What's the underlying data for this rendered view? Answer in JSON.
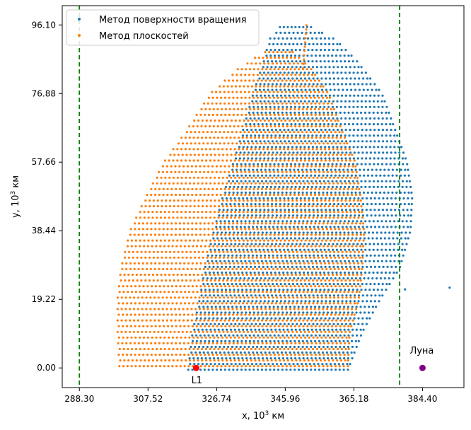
{
  "chart_data": {
    "type": "scatter",
    "xlabel_prefix": "x, 10",
    "xlabel_sup": "3",
    "xlabel_suffix": " км",
    "ylabel_prefix": "y, 10",
    "ylabel_sup": "3",
    "ylabel_suffix": " км",
    "xlim": [
      283.5,
      396.0
    ],
    "ylim": [
      -5.5,
      101.5
    ],
    "xticks": [
      "288.30",
      "307.52",
      "326.74",
      "345.96",
      "365.18",
      "384.40"
    ],
    "xtick_values": [
      288.3,
      307.52,
      326.74,
      345.96,
      365.18,
      384.4
    ],
    "yticks": [
      "0.00",
      "19.22",
      "38.44",
      "57.66",
      "76.88",
      "96.10"
    ],
    "ytick_values": [
      0.0,
      19.22,
      38.44,
      57.66,
      76.88,
      96.1
    ],
    "grid": false,
    "legend_position": "top-left",
    "series": [
      {
        "name": "Метод поверхности вращения",
        "color": "#1f77b4",
        "rows": [
          {
            "y": -0.5,
            "x0": 318.8,
            "x1": 363.5
          },
          {
            "y": 10.0,
            "x0": 320.0,
            "x1": 367.5
          },
          {
            "y": 19.2,
            "x0": 322.0,
            "x1": 372.5
          },
          {
            "y": 28.0,
            "x0": 323.5,
            "x1": 378.0
          },
          {
            "y": 38.4,
            "x0": 326.0,
            "x1": 381.0
          },
          {
            "y": 48.0,
            "x0": 328.5,
            "x1": 381.5
          },
          {
            "y": 57.7,
            "x0": 331.5,
            "x1": 380.0
          },
          {
            "y": 66.0,
            "x0": 334.0,
            "x1": 377.0
          },
          {
            "y": 76.9,
            "x0": 337.0,
            "x1": 373.0
          },
          {
            "y": 86.0,
            "x0": 340.0,
            "x1": 366.0
          },
          {
            "y": 92.0,
            "x0": 341.5,
            "x1": 360.0
          },
          {
            "y": 96.1,
            "x0": 345.0,
            "x1": 352.0
          }
        ],
        "outliers": [
          [
            392.0,
            22.5
          ],
          [
            379.5,
            22.0
          ]
        ]
      },
      {
        "name": "Метод плоскостей",
        "color": "#ff7f0e",
        "rows": [
          {
            "y": 0.5,
            "x0": 299.5,
            "x1": 363.5
          },
          {
            "y": 10.0,
            "x0": 299.0,
            "x1": 364.0
          },
          {
            "y": 19.2,
            "x0": 299.0,
            "x1": 366.5
          },
          {
            "y": 28.0,
            "x0": 300.0,
            "x1": 367.5
          },
          {
            "y": 38.4,
            "x0": 302.5,
            "x1": 368.0
          },
          {
            "y": 48.0,
            "x0": 307.0,
            "x1": 367.0
          },
          {
            "y": 57.7,
            "x0": 312.0,
            "x1": 365.5
          },
          {
            "y": 66.0,
            "x0": 318.0,
            "x1": 362.0
          },
          {
            "y": 76.9,
            "x0": 325.0,
            "x1": 358.0
          },
          {
            "y": 84.0,
            "x0": 333.0,
            "x1": 353.0
          },
          {
            "y": 88.5,
            "x0": 340.0,
            "x1": 348.0
          },
          {
            "y": 90.0,
            "x0": 343.5,
            "x1": 345.5
          }
        ],
        "spike": {
          "x": 352.0,
          "y0": 84.0,
          "y1": 97.0
        }
      }
    ],
    "vertical_lines": [
      {
        "x": 288.3,
        "color": "#008000",
        "style": "dashed"
      },
      {
        "x": 378.0,
        "color": "#008000",
        "style": "dashed"
      }
    ],
    "points": [
      {
        "label": "L1",
        "x": 321.0,
        "y": 0.0,
        "color": "#ff0000",
        "label_position": "below"
      },
      {
        "label": "Луна",
        "x": 384.4,
        "y": 0.0,
        "color": "#800080",
        "label_position": "above"
      }
    ]
  }
}
